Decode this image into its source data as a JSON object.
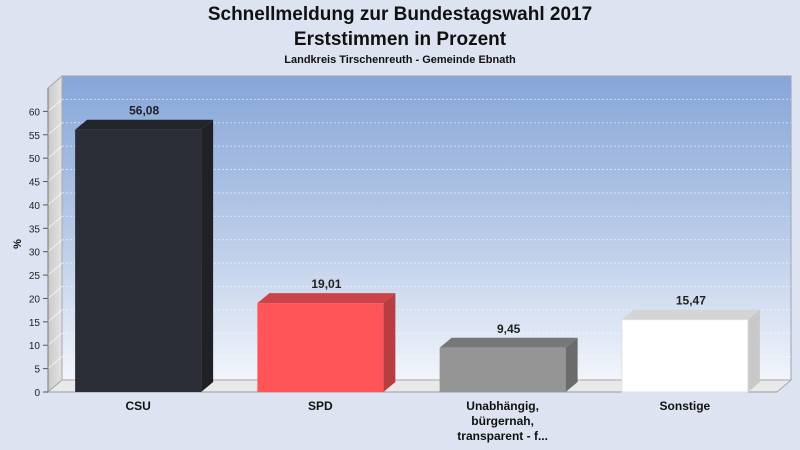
{
  "header": {
    "title": "Schnellmeldung zur Bundestagswahl 2017",
    "subtitle": "Erststimmen in Prozent",
    "region": "Landkreis Tirschenreuth - Gemeinde Ebnath"
  },
  "chart_data": {
    "type": "bar",
    "title": "Schnellmeldung zur Bundestagswahl 2017",
    "subtitle": "Erststimmen in Prozent",
    "xlabel": "",
    "ylabel": "%",
    "ylim": [
      0,
      65
    ],
    "yticks": [
      0,
      5,
      10,
      15,
      20,
      25,
      30,
      35,
      40,
      45,
      50,
      55,
      60
    ],
    "grid": true,
    "legend": "none",
    "categories": [
      "CSU",
      "SPD",
      "Unabhängig, bürgernah, transparent - f...",
      "Sonstige"
    ],
    "category_lines": [
      [
        "CSU"
      ],
      [
        "SPD"
      ],
      [
        "Unabhängig,",
        "bürgernah,",
        "transparent - f..."
      ],
      [
        "Sonstige"
      ]
    ],
    "values": [
      56.08,
      19.01,
      9.45,
      15.47
    ],
    "value_labels": [
      "56,08",
      "19,01",
      "9,45",
      "15,47"
    ],
    "colors": [
      "#2b2e36",
      "#ff5559",
      "#959595",
      "#ffffff"
    ]
  }
}
